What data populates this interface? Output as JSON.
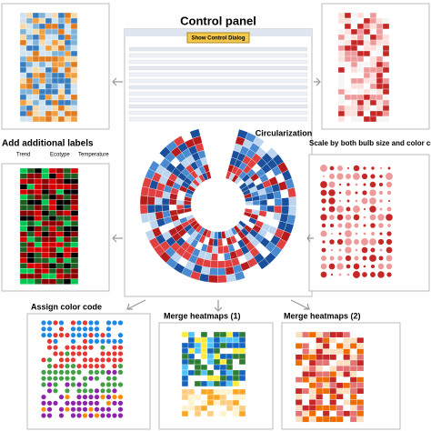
{
  "control_panel": {
    "title": "Control panel",
    "button": "Show Control Dialog",
    "circular_title": "Circularization"
  },
  "side_labels": {
    "left": "Add additional labels",
    "right": "Scale by both bulb size and color code"
  },
  "annotation_legend": [
    "Trend",
    "Ecotype",
    "Temperature"
  ],
  "bottom_labels": [
    "Assign color code",
    "Merge heatmaps (1)",
    "Merge heatmaps (2)"
  ]
}
